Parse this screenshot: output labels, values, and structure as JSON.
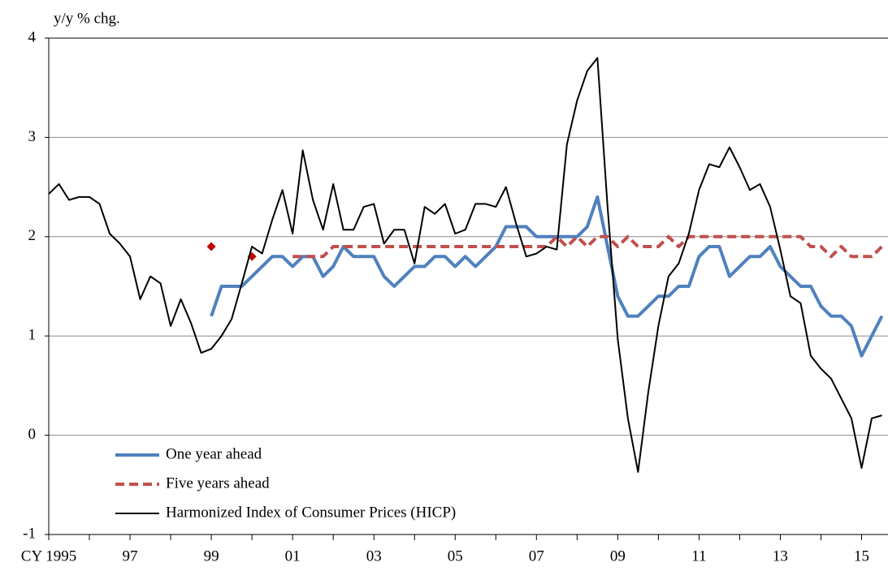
{
  "chart_data": {
    "type": "line",
    "y_axis_label": "y/y % chg.",
    "xlim": [
      1995,
      2015.65
    ],
    "ylim": [
      -1,
      4
    ],
    "yticks": [
      -1,
      0,
      1,
      2,
      3,
      4
    ],
    "xticks": [
      {
        "value": 1995,
        "label": "CY 1995"
      },
      {
        "value": 1997,
        "label": "97"
      },
      {
        "value": 1999,
        "label": "99"
      },
      {
        "value": 2001,
        "label": "01"
      },
      {
        "value": 2003,
        "label": "03"
      },
      {
        "value": 2005,
        "label": "05"
      },
      {
        "value": 2007,
        "label": "07"
      },
      {
        "value": 2009,
        "label": "09"
      },
      {
        "value": 2011,
        "label": "11"
      },
      {
        "value": 2013,
        "label": "13"
      },
      {
        "value": 2015,
        "label": "15"
      }
    ],
    "xminor_ticks": [
      1996,
      1998,
      2000,
      2002,
      2004,
      2006,
      2008,
      2010,
      2012,
      2014
    ],
    "grid": true,
    "legend": "lower left",
    "series": [
      {
        "name": "One year ahead",
        "color": "#4f81bd",
        "style": "solid",
        "width": 4,
        "x": [
          1999,
          1999.25,
          1999.5,
          1999.75,
          2000,
          2000.25,
          2000.5,
          2000.75,
          2001,
          2001.25,
          2001.5,
          2001.75,
          2002,
          2002.25,
          2002.5,
          2002.75,
          2003,
          2003.25,
          2003.5,
          2003.75,
          2004,
          2004.25,
          2004.5,
          2004.75,
          2005,
          2005.25,
          2005.5,
          2005.75,
          2006,
          2006.25,
          2006.5,
          2006.75,
          2007,
          2007.25,
          2007.5,
          2007.75,
          2008,
          2008.25,
          2008.5,
          2008.75,
          2009,
          2009.25,
          2009.5,
          2009.75,
          2010,
          2010.25,
          2010.5,
          2010.75,
          2011,
          2011.25,
          2011.5,
          2011.75,
          2012,
          2012.25,
          2012.5,
          2012.75,
          2013,
          2013.25,
          2013.5,
          2013.75,
          2014,
          2014.25,
          2014.5,
          2014.75,
          2015,
          2015.25,
          2015.5
        ],
        "values": [
          1.2,
          1.5,
          1.5,
          1.5,
          1.6,
          1.7,
          1.8,
          1.8,
          1.7,
          1.8,
          1.8,
          1.6,
          1.7,
          1.9,
          1.8,
          1.8,
          1.8,
          1.6,
          1.5,
          1.6,
          1.7,
          1.7,
          1.8,
          1.8,
          1.7,
          1.8,
          1.7,
          1.8,
          1.9,
          2.1,
          2.1,
          2.1,
          2.0,
          2.0,
          2.0,
          2.0,
          2.0,
          2.1,
          2.4,
          1.9,
          1.4,
          1.2,
          1.2,
          1.3,
          1.4,
          1.4,
          1.5,
          1.5,
          1.8,
          1.9,
          1.9,
          1.6,
          1.7,
          1.8,
          1.8,
          1.9,
          1.7,
          1.6,
          1.5,
          1.5,
          1.3,
          1.2,
          1.2,
          1.1,
          0.8,
          1.0,
          1.2
        ]
      },
      {
        "name": "Five years ahead",
        "color": "#c0504d",
        "style": "dashed",
        "width": 4,
        "x": [
          2001,
          2001.25,
          2001.5,
          2001.75,
          2002,
          2002.25,
          2002.5,
          2002.75,
          2003,
          2003.25,
          2003.5,
          2003.75,
          2004,
          2004.25,
          2004.5,
          2004.75,
          2005,
          2005.25,
          2005.5,
          2005.75,
          2006,
          2006.25,
          2006.5,
          2006.75,
          2007,
          2007.25,
          2007.5,
          2007.75,
          2008,
          2008.25,
          2008.5,
          2008.75,
          2009,
          2009.25,
          2009.5,
          2009.75,
          2010,
          2010.25,
          2010.5,
          2010.75,
          2011,
          2011.25,
          2011.5,
          2011.75,
          2012,
          2012.25,
          2012.5,
          2012.75,
          2013,
          2013.25,
          2013.5,
          2013.75,
          2014,
          2014.25,
          2014.5,
          2014.75,
          2015,
          2015.25,
          2015.5
        ],
        "values": [
          1.8,
          1.8,
          1.8,
          1.8,
          1.9,
          1.9,
          1.9,
          1.9,
          1.9,
          1.9,
          1.9,
          1.9,
          1.9,
          1.9,
          1.9,
          1.9,
          1.9,
          1.9,
          1.9,
          1.9,
          1.9,
          1.9,
          1.9,
          1.9,
          1.9,
          1.9,
          2.0,
          1.9,
          2.0,
          1.9,
          2.0,
          2.0,
          1.9,
          2.0,
          1.9,
          1.9,
          1.9,
          2.0,
          1.9,
          2.0,
          2.0,
          2.0,
          2.0,
          2.0,
          2.0,
          2.0,
          2.0,
          2.0,
          2.0,
          2.0,
          2.0,
          1.9,
          1.9,
          1.8,
          1.9,
          1.8,
          1.8,
          1.8,
          1.9
        ],
        "markers": {
          "color": "#c00000",
          "x": [
            1999,
            2000
          ],
          "values": [
            1.9,
            1.8
          ]
        }
      },
      {
        "name": "Harmonized Index of Consumer Prices (HICP)",
        "color": "#000000",
        "style": "solid",
        "width": 2,
        "x": [
          1995,
          1995.25,
          1995.5,
          1995.75,
          1996,
          1996.25,
          1996.5,
          1996.75,
          1997,
          1997.25,
          1997.5,
          1997.75,
          1998,
          1998.25,
          1998.5,
          1998.75,
          1999,
          1999.25,
          1999.5,
          1999.75,
          2000,
          2000.25,
          2000.5,
          2000.75,
          2001,
          2001.25,
          2001.5,
          2001.75,
          2002,
          2002.25,
          2002.5,
          2002.75,
          2003,
          2003.25,
          2003.5,
          2003.75,
          2004,
          2004.25,
          2004.5,
          2004.75,
          2005,
          2005.25,
          2005.5,
          2005.75,
          2006,
          2006.25,
          2006.5,
          2006.75,
          2007,
          2007.25,
          2007.5,
          2007.75,
          2008,
          2008.25,
          2008.5,
          2008.75,
          2009,
          2009.25,
          2009.5,
          2009.75,
          2010,
          2010.25,
          2010.5,
          2010.75,
          2011,
          2011.25,
          2011.5,
          2011.75,
          2012,
          2012.25,
          2012.5,
          2012.75,
          2013,
          2013.25,
          2013.5,
          2013.75,
          2014,
          2014.25,
          2014.5,
          2014.75,
          2015,
          2015.25,
          2015.5
        ],
        "values": [
          2.43,
          2.53,
          2.37,
          2.4,
          2.4,
          2.33,
          2.03,
          1.93,
          1.8,
          1.37,
          1.6,
          1.53,
          1.1,
          1.37,
          1.13,
          0.83,
          0.87,
          1.0,
          1.17,
          1.53,
          1.9,
          1.83,
          2.17,
          2.47,
          2.03,
          2.87,
          2.37,
          2.07,
          2.53,
          2.07,
          2.07,
          2.3,
          2.33,
          1.93,
          2.07,
          2.07,
          1.73,
          2.3,
          2.23,
          2.33,
          2.03,
          2.07,
          2.33,
          2.33,
          2.3,
          2.5,
          2.13,
          1.8,
          1.83,
          1.9,
          1.87,
          2.93,
          3.37,
          3.67,
          3.8,
          2.3,
          0.97,
          0.17,
          -0.37,
          0.43,
          1.1,
          1.6,
          1.73,
          2.03,
          2.47,
          2.73,
          2.7,
          2.9,
          2.7,
          2.47,
          2.53,
          2.3,
          1.87,
          1.4,
          1.33,
          0.8,
          0.67,
          0.57,
          0.37,
          0.17,
          -0.33,
          0.17,
          0.2
        ]
      }
    ]
  }
}
